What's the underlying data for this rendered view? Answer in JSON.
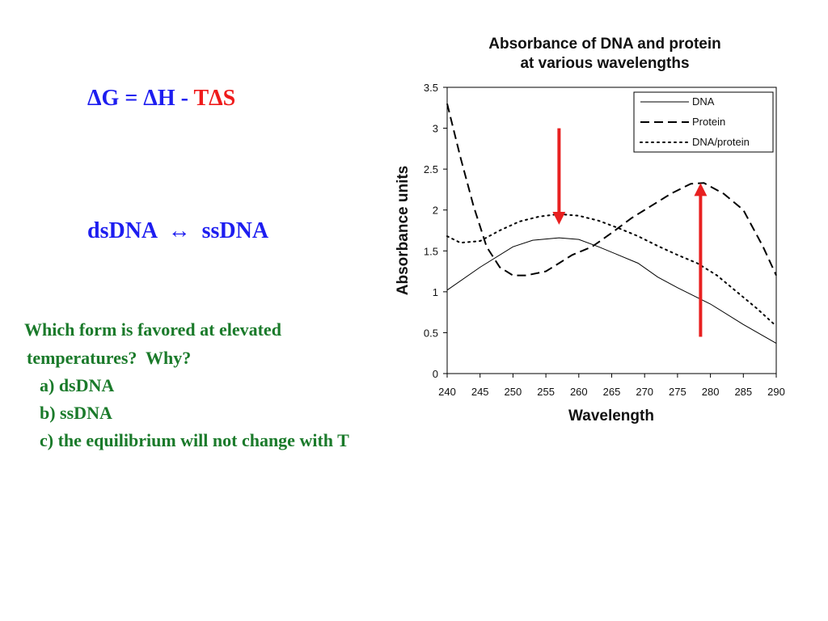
{
  "slide": {
    "equation": {
      "part1": "ΔG = ΔH - ",
      "part2": "TΔS",
      "part2_color": "#ef1b1b",
      "color": "#1d1df0"
    },
    "reaction": "dsDNA  ↔  ssDNA",
    "question": {
      "line1": "Which form is favored at elevated",
      "line2": "temperatures?  Why?",
      "options": [
        "a) dsDNA",
        "b) ssDNA",
        "c) the equilibrium will not change with T"
      ],
      "color": "#1a7a2a"
    },
    "arrow_color": "#e82020"
  },
  "chart_data": {
    "type": "line",
    "title": "Absorbance of DNA and protein",
    "subtitle": "at various wavelengths",
    "xlabel": "Wavelength",
    "ylabel": "Absorbance units",
    "xlim": [
      240,
      290
    ],
    "ylim": [
      0,
      3.5
    ],
    "x_ticks": [
      "240",
      "245",
      "250",
      "255",
      "260",
      "265",
      "270",
      "275",
      "280",
      "285",
      "290"
    ],
    "y_ticks": [
      "0",
      "0.5",
      "1",
      "1.5",
      "2",
      "2.5",
      "3",
      "3.5"
    ],
    "grid": false,
    "legend_position": "top-right",
    "series": [
      {
        "name": "DNA",
        "style": "solid",
        "x": [
          240,
          245,
          250,
          253,
          257,
          260,
          263,
          266,
          269,
          272,
          275,
          280,
          285,
          290
        ],
        "y": [
          1.02,
          1.3,
          1.55,
          1.63,
          1.66,
          1.64,
          1.55,
          1.45,
          1.35,
          1.18,
          1.05,
          0.85,
          0.6,
          0.37
        ]
      },
      {
        "name": "Protein",
        "style": "dashed",
        "x": [
          240,
          242,
          244,
          246,
          248,
          250,
          252,
          255,
          257,
          259,
          262,
          265,
          268,
          271,
          274,
          277,
          279,
          282,
          285,
          288,
          290
        ],
        "y": [
          3.3,
          2.65,
          2.05,
          1.55,
          1.3,
          1.2,
          1.2,
          1.25,
          1.35,
          1.45,
          1.55,
          1.72,
          1.9,
          2.05,
          2.2,
          2.32,
          2.33,
          2.2,
          2.0,
          1.55,
          1.2
        ]
      },
      {
        "name": "DNA/protein",
        "style": "dotted",
        "x": [
          240,
          242,
          245,
          248,
          251,
          254,
          257,
          260,
          263,
          266,
          269,
          272,
          275,
          278,
          281,
          284,
          287,
          290
        ],
        "y": [
          1.68,
          1.6,
          1.62,
          1.75,
          1.86,
          1.92,
          1.95,
          1.93,
          1.87,
          1.78,
          1.68,
          1.56,
          1.45,
          1.35,
          1.2,
          1.0,
          0.8,
          0.58
        ]
      }
    ],
    "annotations": [
      {
        "type": "arrow",
        "direction": "down",
        "x": 257,
        "y_from": 3.0,
        "y_to": 1.9
      },
      {
        "type": "arrow",
        "direction": "up",
        "x": 278.5,
        "y_from": 0.45,
        "y_to": 2.25
      }
    ]
  }
}
